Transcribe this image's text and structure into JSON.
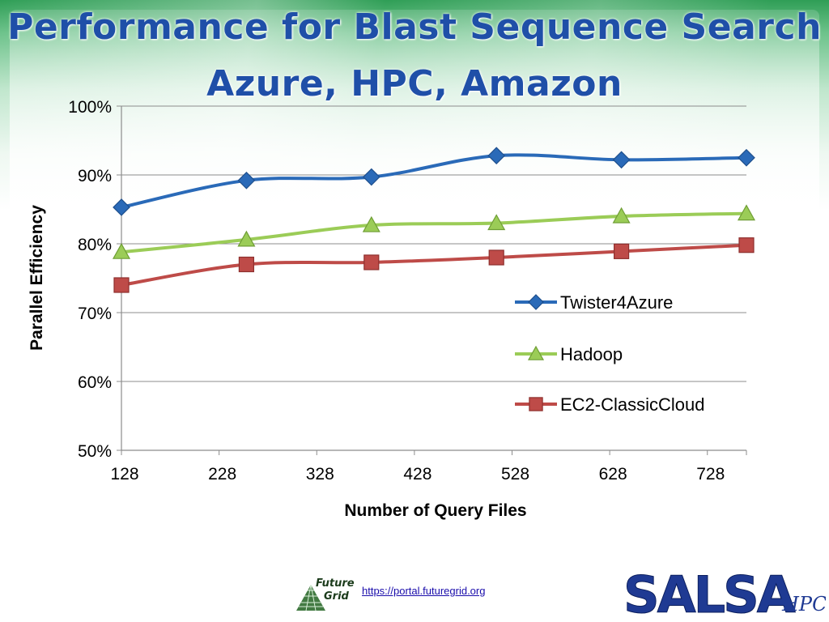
{
  "slide": {
    "title_line1": "Performance for Blast Sequence Search",
    "title_line2": "Azure, HPC, Amazon",
    "link": "https://portal.futuregrid.org"
  },
  "logos": {
    "futuregrid_line1": "Future",
    "futuregrid_line2": "Grid",
    "salsa": "SALSA",
    "salsa_suffix": "HPC"
  },
  "chart_data": {
    "type": "line",
    "xlabel": "Number of Query Files",
    "ylabel": "Parallel Efficiency",
    "xlim": [
      128,
      768
    ],
    "ylim": [
      0.5,
      1.0
    ],
    "x_ticks": [
      128,
      228,
      328,
      428,
      528,
      628,
      728
    ],
    "x_tick_labels": [
      "128",
      "228",
      "328",
      "428",
      "528",
      "628",
      "728"
    ],
    "y_ticks": [
      0.5,
      0.6,
      0.7,
      0.8,
      0.9,
      1.0
    ],
    "y_tick_labels": [
      "50%",
      "60%",
      "70%",
      "80%",
      "90%",
      "100%"
    ],
    "grid": "horizontal",
    "legend_position": "right",
    "series": [
      {
        "name": "Twister4Azure",
        "color": "#2a6ab8",
        "marker": "diamond",
        "x": [
          128,
          256,
          384,
          512,
          640,
          768
        ],
        "y": [
          0.853,
          0.892,
          0.897,
          0.928,
          0.922,
          0.925
        ]
      },
      {
        "name": "Hadoop",
        "color": "#9bcc57",
        "marker": "triangle",
        "x": [
          128,
          256,
          384,
          512,
          640,
          768
        ],
        "y": [
          0.788,
          0.806,
          0.827,
          0.83,
          0.84,
          0.844
        ]
      },
      {
        "name": "EC2-ClassicCloud",
        "color": "#be4b48",
        "marker": "square",
        "x": [
          128,
          256,
          384,
          512,
          640,
          768
        ],
        "y": [
          0.74,
          0.77,
          0.773,
          0.78,
          0.789,
          0.798
        ]
      }
    ]
  }
}
